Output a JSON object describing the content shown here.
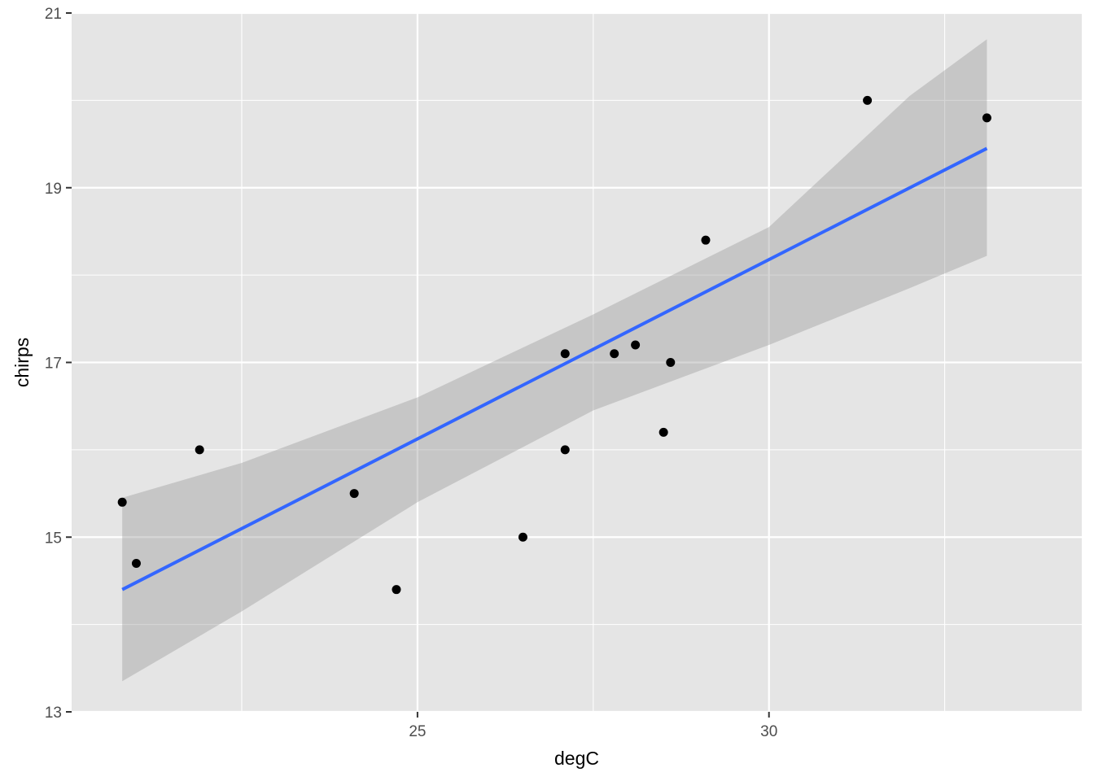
{
  "chart_data": {
    "type": "scatter",
    "xlabel": "degC",
    "ylabel": "chirps",
    "xlim": [
      20.08,
      34.45
    ],
    "ylim": [
      13,
      21
    ],
    "x_ticks": [
      25,
      30
    ],
    "x_tick_labels": [
      "25",
      "30"
    ],
    "x_minor_breaks": [
      22.5,
      27.5,
      32.5
    ],
    "y_ticks": [
      13,
      15,
      17,
      19,
      21
    ],
    "y_tick_labels": [
      "13",
      "15",
      "17",
      "19",
      "21"
    ],
    "y_minor_breaks": [
      14,
      16,
      18,
      20
    ],
    "grid": true,
    "points": [
      {
        "x": 33.1,
        "y": 19.8
      },
      {
        "x": 29.1,
        "y": 18.4
      },
      {
        "x": 28.6,
        "y": 17.0
      },
      {
        "x": 27.1,
        "y": 17.1
      },
      {
        "x": 24.1,
        "y": 15.5
      },
      {
        "x": 27.8,
        "y": 17.1
      },
      {
        "x": 21.9,
        "y": 16.0
      },
      {
        "x": 26.5,
        "y": 15.0
      },
      {
        "x": 21.0,
        "y": 14.7
      },
      {
        "x": 31.4,
        "y": 20.0
      },
      {
        "x": 28.5,
        "y": 16.2
      },
      {
        "x": 28.1,
        "y": 17.2
      },
      {
        "x": 20.8,
        "y": 15.4
      },
      {
        "x": 24.7,
        "y": 14.4
      },
      {
        "x": 27.1,
        "y": 16.0
      }
    ],
    "fit_line": {
      "x": [
        20.8,
        33.1
      ],
      "y": [
        14.4,
        19.45
      ]
    },
    "confidence_band": {
      "x": [
        20.8,
        22.5,
        25.0,
        27.5,
        30.0,
        32.0,
        33.1
      ],
      "lower": [
        13.35,
        14.15,
        15.4,
        16.45,
        17.2,
        17.85,
        18.22
      ],
      "upper": [
        15.45,
        15.85,
        16.6,
        17.55,
        18.55,
        20.05,
        20.7
      ]
    },
    "colors": {
      "panel": "#e5e5e5",
      "grid": "#ffffff",
      "points": "#000000",
      "fit_line": "#3366ff",
      "band": "#999999",
      "tick": "#333333"
    }
  }
}
